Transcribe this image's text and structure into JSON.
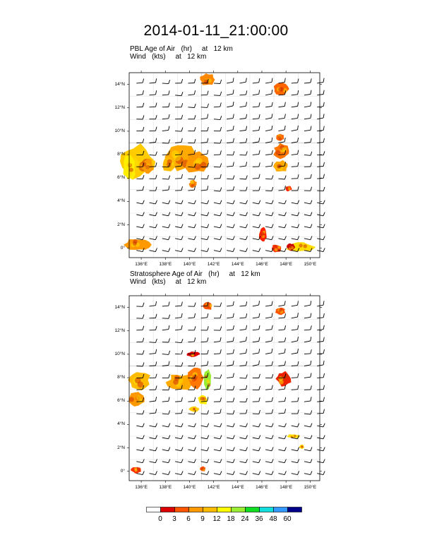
{
  "title": "2014-01-11_21:00:00",
  "panels": [
    {
      "id": "pbl",
      "title_line1": "PBL Age of Air   (hr)     at   12 km",
      "title_line2": "Wind   (kts)     at   12 km",
      "blobs": [
        {
          "lon": 135.6,
          "lat": 7.4,
          "rx": 1.4,
          "ry": 1.4,
          "color": "#ffcc00"
        },
        {
          "lon": 135.0,
          "lat": 6.9,
          "rx": 0.5,
          "ry": 1.2,
          "color": "#ffee00"
        },
        {
          "lon": 136.5,
          "lat": 7.0,
          "rx": 0.5,
          "ry": 0.6,
          "color": "#ff9900"
        },
        {
          "lon": 139.3,
          "lat": 7.8,
          "rx": 1.3,
          "ry": 1.1,
          "color": "#ffaa00"
        },
        {
          "lon": 140.6,
          "lat": 7.3,
          "rx": 0.9,
          "ry": 0.9,
          "color": "#ff9900"
        },
        {
          "lon": 138.3,
          "lat": 7.2,
          "rx": 0.6,
          "ry": 0.6,
          "color": "#ffbb00"
        },
        {
          "lon": 140.3,
          "lat": 5.5,
          "rx": 0.3,
          "ry": 0.3,
          "color": "#ff8800"
        },
        {
          "lon": 141.5,
          "lat": 14.4,
          "rx": 0.6,
          "ry": 0.5,
          "color": "#ff8800"
        },
        {
          "lon": 147.6,
          "lat": 13.6,
          "rx": 0.6,
          "ry": 0.5,
          "color": "#ff6600"
        },
        {
          "lon": 147.7,
          "lat": 8.3,
          "rx": 0.7,
          "ry": 0.6,
          "color": "#ff7700"
        },
        {
          "lon": 147.6,
          "lat": 7.0,
          "rx": 0.6,
          "ry": 0.5,
          "color": "#ffaa00"
        },
        {
          "lon": 147.5,
          "lat": 9.5,
          "rx": 0.3,
          "ry": 0.3,
          "color": "#ff6600"
        },
        {
          "lon": 148.2,
          "lat": 5.1,
          "rx": 0.25,
          "ry": 0.2,
          "color": "#ff2200"
        },
        {
          "lon": 135.7,
          "lat": 0.3,
          "rx": 1.0,
          "ry": 0.5,
          "color": "#ff9900"
        },
        {
          "lon": 146.1,
          "lat": 1.2,
          "rx": 0.3,
          "ry": 0.6,
          "color": "#ff2200"
        },
        {
          "lon": 147.2,
          "lat": 0.0,
          "rx": 0.4,
          "ry": 0.3,
          "color": "#ff3300"
        },
        {
          "lon": 149.2,
          "lat": 0.1,
          "rx": 1.2,
          "ry": 0.4,
          "color": "#ffdd00"
        },
        {
          "lon": 148.4,
          "lat": 0.1,
          "rx": 0.3,
          "ry": 0.3,
          "color": "#cc0000"
        }
      ]
    },
    {
      "id": "strat",
      "title_line1": "Stratosphere Age of Air   (hr)     at   12 km",
      "title_line2": "Wind   (kts)     at   12 km",
      "blobs": [
        {
          "lon": 135.8,
          "lat": 7.8,
          "rx": 0.9,
          "ry": 0.8,
          "color": "#ffbb00"
        },
        {
          "lon": 135.6,
          "lat": 6.2,
          "rx": 0.7,
          "ry": 0.6,
          "color": "#ff9900"
        },
        {
          "lon": 139.2,
          "lat": 7.6,
          "rx": 1.0,
          "ry": 0.7,
          "color": "#ffaa00"
        },
        {
          "lon": 140.5,
          "lat": 8.0,
          "rx": 0.6,
          "ry": 0.9,
          "color": "#ff7700"
        },
        {
          "lon": 141.5,
          "lat": 7.8,
          "rx": 0.3,
          "ry": 0.8,
          "color": "#99ee33"
        },
        {
          "lon": 141.1,
          "lat": 6.1,
          "rx": 0.4,
          "ry": 0.4,
          "color": "#ffee00"
        },
        {
          "lon": 140.4,
          "lat": 5.3,
          "rx": 0.4,
          "ry": 0.2,
          "color": "#ffcc00"
        },
        {
          "lon": 140.3,
          "lat": 10.0,
          "rx": 0.5,
          "ry": 0.2,
          "color": "#dd0000"
        },
        {
          "lon": 141.5,
          "lat": 14.1,
          "rx": 0.4,
          "ry": 0.3,
          "color": "#ff5500"
        },
        {
          "lon": 147.5,
          "lat": 13.7,
          "rx": 0.4,
          "ry": 0.3,
          "color": "#ff5500"
        },
        {
          "lon": 147.8,
          "lat": 7.9,
          "rx": 0.6,
          "ry": 0.6,
          "color": "#ee2200"
        },
        {
          "lon": 148.6,
          "lat": 3.0,
          "rx": 0.5,
          "ry": 0.15,
          "color": "#ffdd00"
        },
        {
          "lon": 149.3,
          "lat": 2.1,
          "rx": 0.2,
          "ry": 0.15,
          "color": "#ffdd00"
        },
        {
          "lon": 135.6,
          "lat": 0.1,
          "rx": 0.4,
          "ry": 0.25,
          "color": "#ff3300"
        },
        {
          "lon": 141.1,
          "lat": 0.2,
          "rx": 0.2,
          "ry": 0.2,
          "color": "#ff5500"
        }
      ]
    }
  ],
  "map": {
    "lon_min": 135,
    "lon_max": 150.8,
    "lat_min": -0.8,
    "lat_max": 15,
    "x_ticks": [
      {
        "v": 136,
        "label": "136°E"
      },
      {
        "v": 138,
        "label": "138°E"
      },
      {
        "v": 140,
        "label": "140°E"
      },
      {
        "v": 142,
        "label": "142°E"
      },
      {
        "v": 144,
        "label": "144°E"
      },
      {
        "v": 146,
        "label": "146°E"
      },
      {
        "v": 148,
        "label": "148°E"
      },
      {
        "v": 150,
        "label": "150°E"
      }
    ],
    "y_ticks": [
      {
        "v": 0,
        "label": "0°"
      },
      {
        "v": 2,
        "label": "2°N"
      },
      {
        "v": 4,
        "label": "4°N"
      },
      {
        "v": 6,
        "label": "6°N"
      },
      {
        "v": 8,
        "label": "8°N"
      },
      {
        "v": 10,
        "label": "10°N"
      },
      {
        "v": 12,
        "label": "12°N"
      },
      {
        "v": 14,
        "label": "14°N"
      }
    ]
  },
  "colorbar": {
    "colors": [
      "#ffffff",
      "#dd0000",
      "#ff5500",
      "#ff9900",
      "#ffbb00",
      "#ffff00",
      "#99ee33",
      "#11dd22",
      "#11dddd",
      "#3399ff",
      "#000088"
    ],
    "labels": [
      "0",
      "3",
      "6",
      "9",
      "12",
      "18",
      "24",
      "36",
      "48",
      "60"
    ]
  }
}
